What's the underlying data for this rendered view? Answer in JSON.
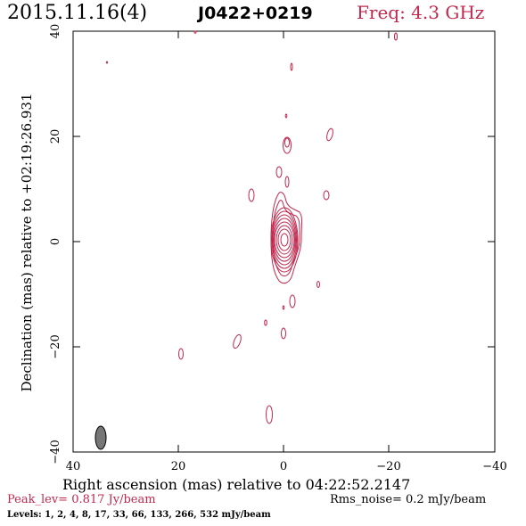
{
  "header": {
    "date": "2015.11.16(4)",
    "source": "J0422+0219",
    "frequency": "Freq: 4.3 GHz"
  },
  "axes": {
    "xlabel": "Right ascension (mas) relative to 04:22:52.2147",
    "ylabel": "Declination (mas) relative to +02:19:26.931",
    "x_ticks": [
      "40",
      "20",
      "0",
      "−20",
      "−40"
    ],
    "y_ticks": [
      "40",
      "20",
      "0",
      "−20",
      "−40"
    ]
  },
  "footer": {
    "peak": "Peak_lev=  0.817 Jy/beam",
    "noise": "Rms_noise=  0.2 mJy/beam",
    "levels": "Levels:   1,   2,   4,   8,  17,  33,  66,  133,  266,  532 mJy/beam"
  },
  "colors": {
    "contour": "#c0284e",
    "beam": "#777777"
  }
}
